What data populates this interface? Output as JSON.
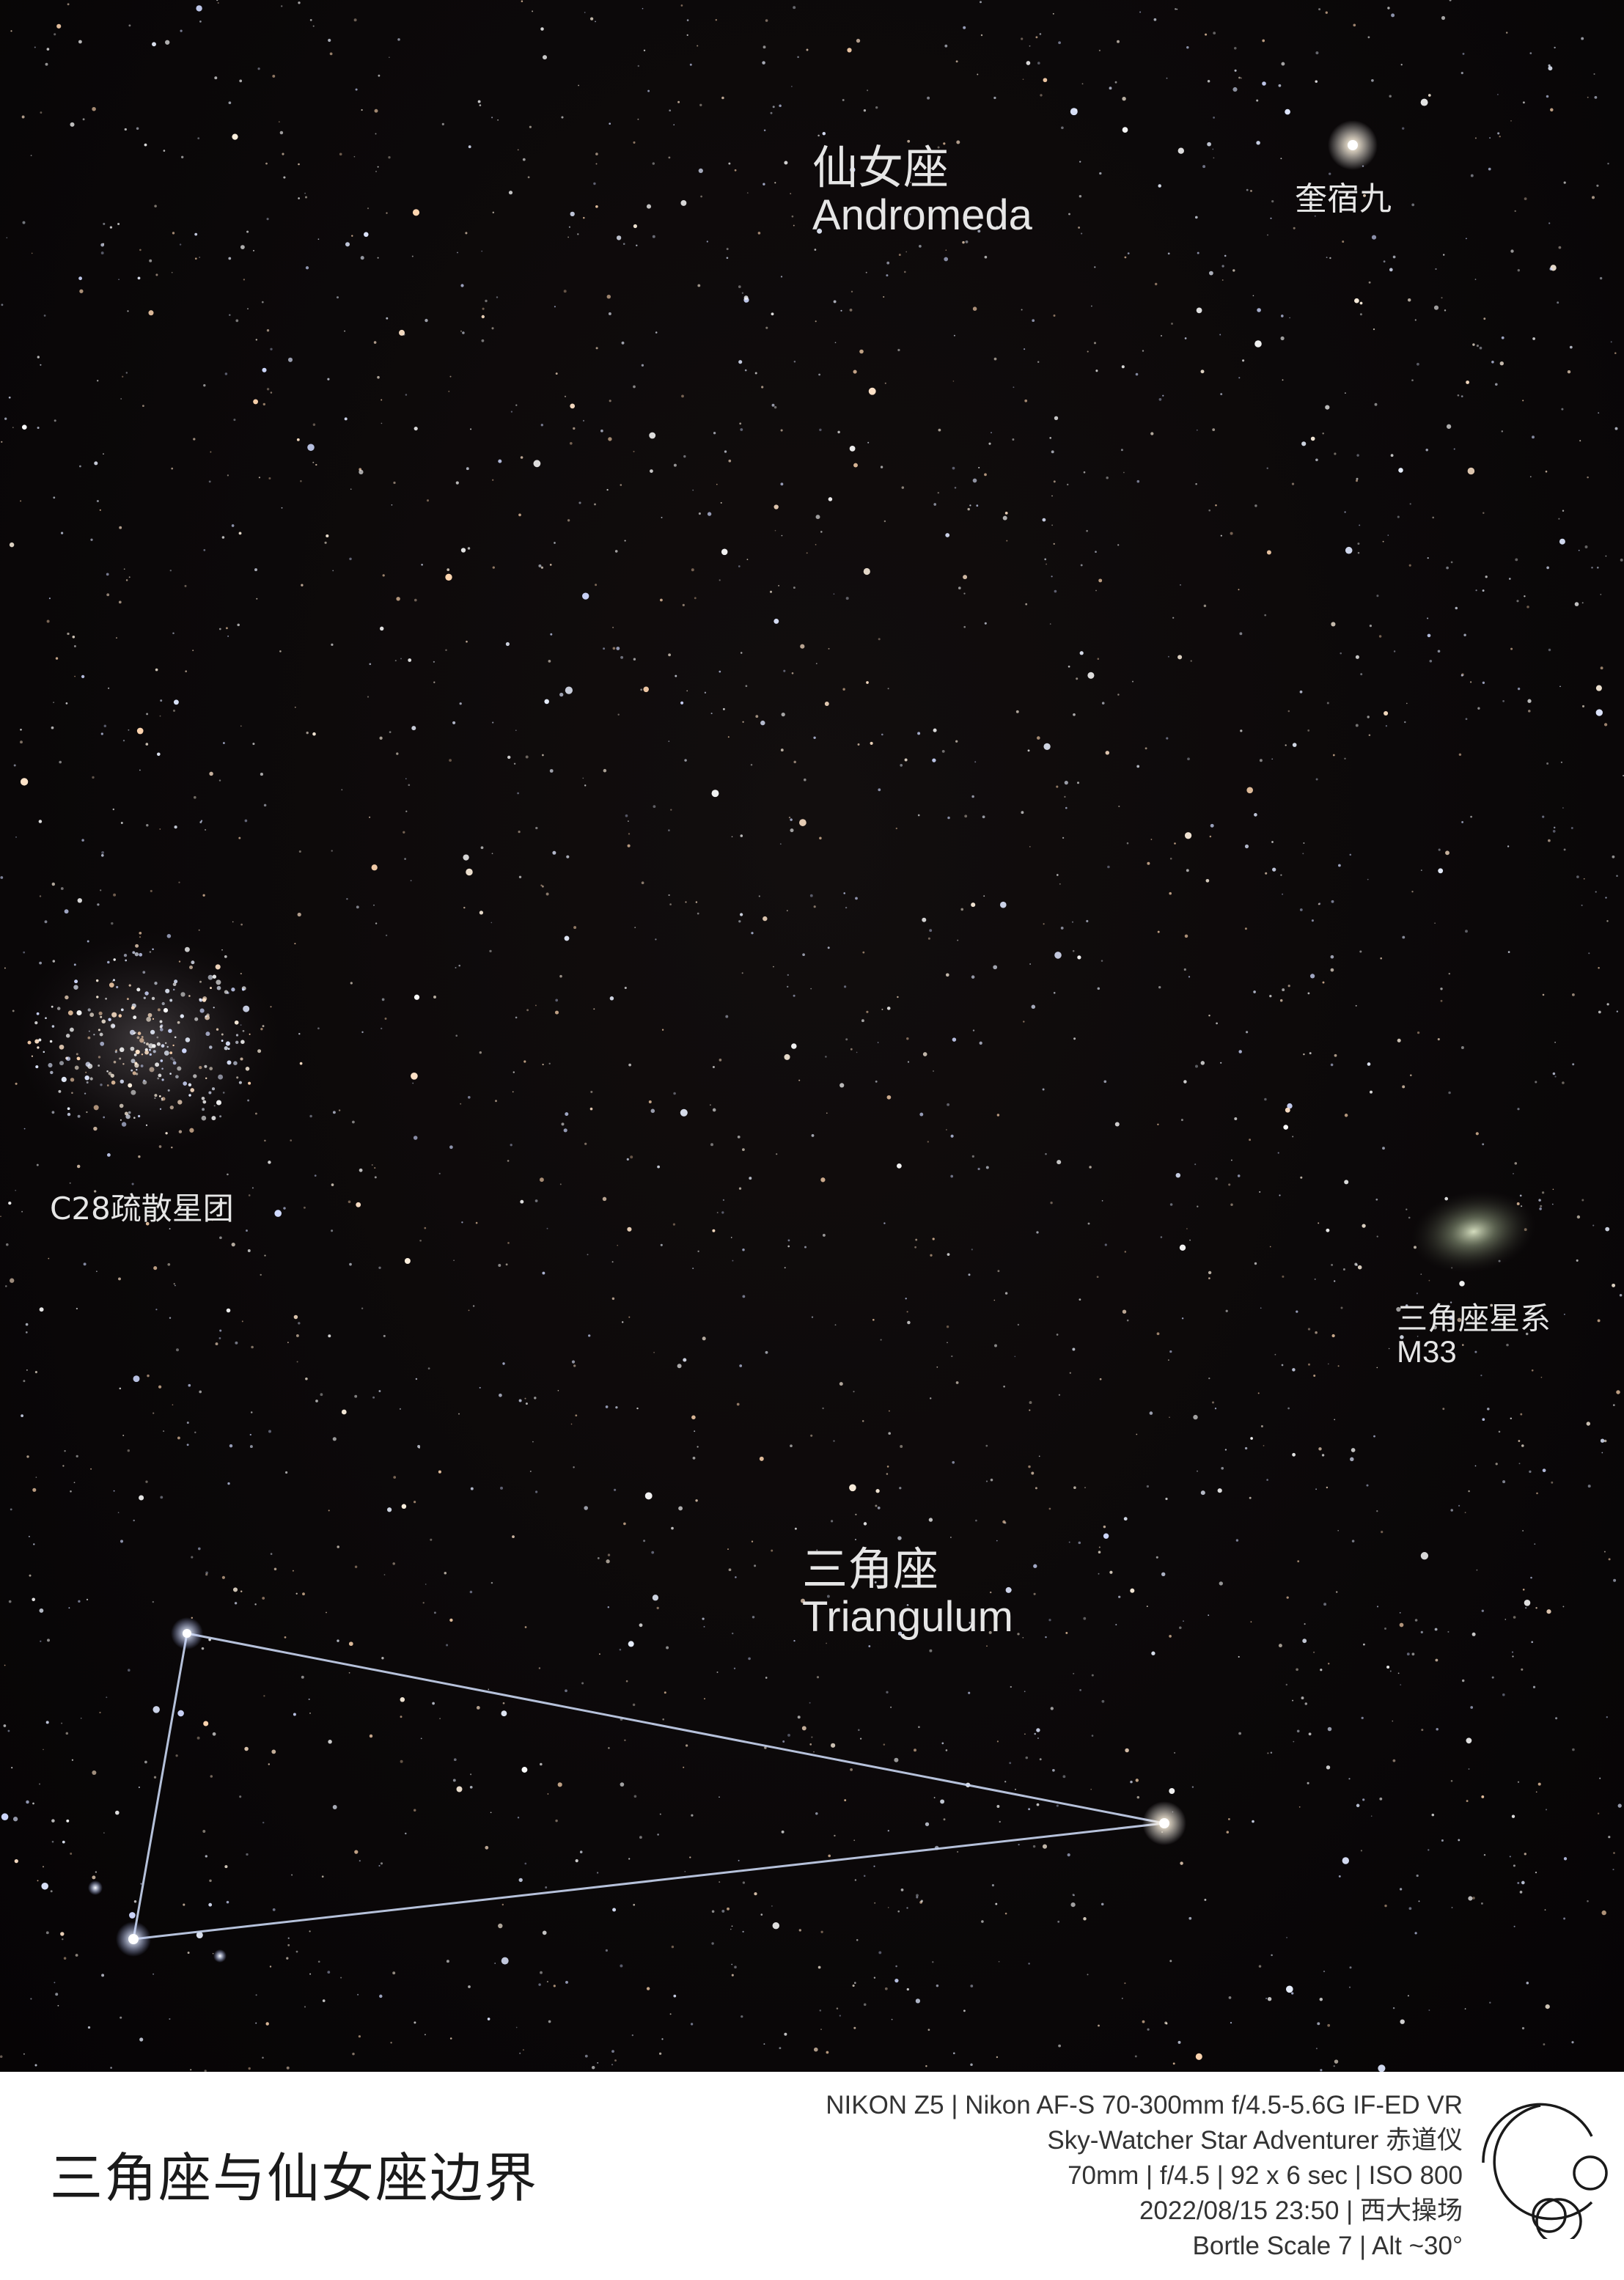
{
  "photo": {
    "title": "三角座与仙女座边界"
  },
  "labels": {
    "andromeda": {
      "cn": "仙女座",
      "en": "Andromeda"
    },
    "kuisu": {
      "cn": "奎宿九"
    },
    "c28": {
      "cn": "C28疏散星团"
    },
    "m33": {
      "cn": "三角座星系",
      "en": "M33"
    },
    "triangulum": {
      "cn": "三角座",
      "en": "Triangulum"
    }
  },
  "exif": {
    "line1": "NIKON Z5  |  Nikon AF-S 70-300mm f/4.5-5.6G IF-ED VR",
    "line2": "Sky-Watcher Star Adventurer 赤道仪",
    "line3": "70mm | f/4.5 | 92 x 6 sec | ISO 800",
    "line4": "2022/08/15 23:50 | 西大操场",
    "line5": "Bortle Scale 7 | Alt ~30°"
  },
  "colors": {
    "sky": "#0b0809",
    "constellation_line": "#c9d6f2",
    "label_text": "#e6e6e6",
    "info_bg": "#ffffff"
  }
}
